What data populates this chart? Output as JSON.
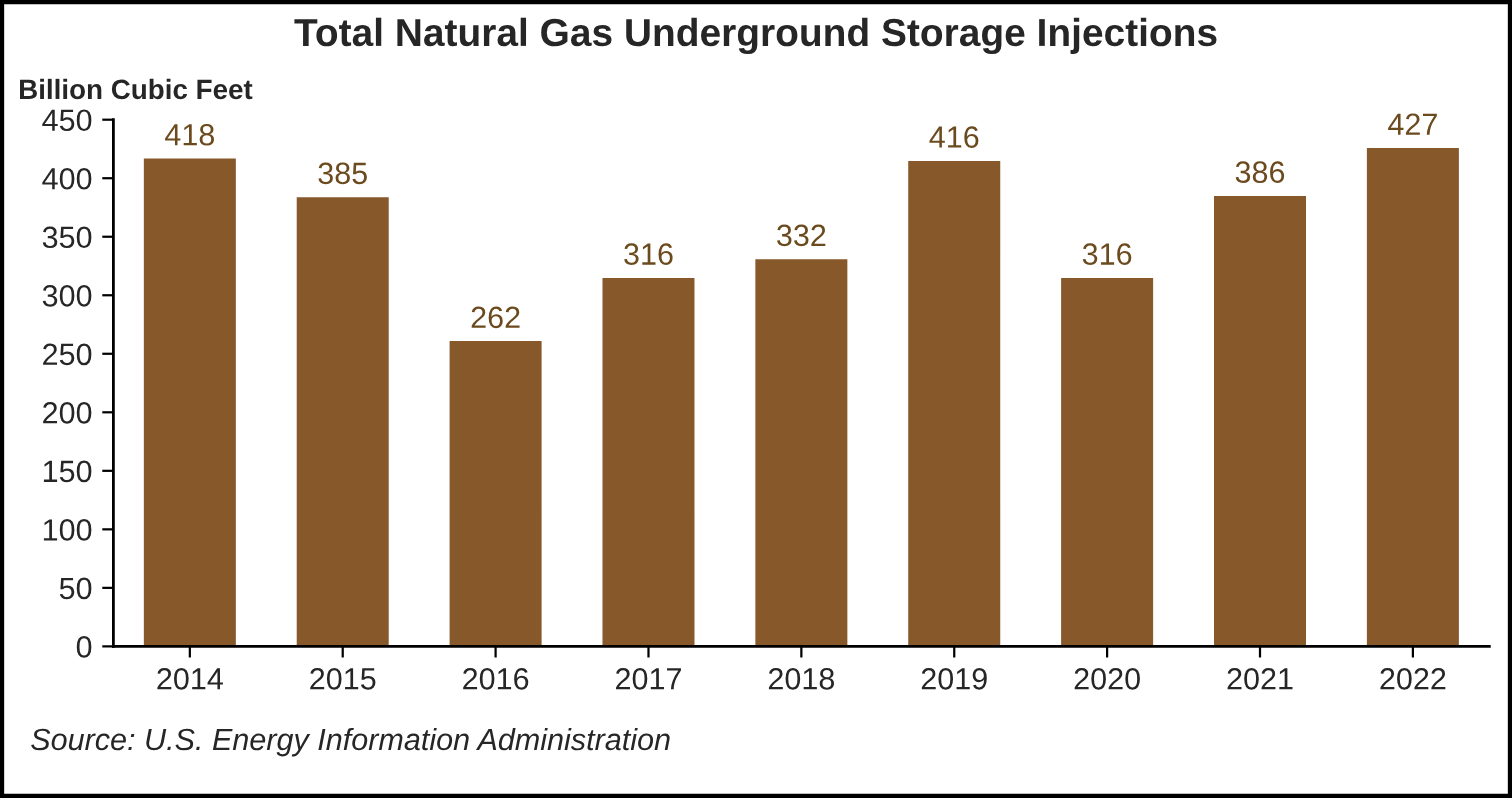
{
  "chart_data": {
    "type": "bar",
    "title": "Total Natural Gas Underground Storage Injections",
    "ylabel": "Billion Cubic Feet",
    "categories": [
      "2014",
      "2015",
      "2016",
      "2017",
      "2018",
      "2019",
      "2020",
      "2021",
      "2022"
    ],
    "values": [
      418,
      385,
      262,
      316,
      332,
      416,
      316,
      386,
      427
    ],
    "color": "#87582a",
    "ylim": [
      0,
      450
    ],
    "yticks": [
      0,
      50,
      100,
      150,
      200,
      250,
      300,
      350,
      400,
      450
    ],
    "grid": false,
    "data_labels": true,
    "annotations": [
      "Source: U.S. Energy Information Administration"
    ]
  }
}
